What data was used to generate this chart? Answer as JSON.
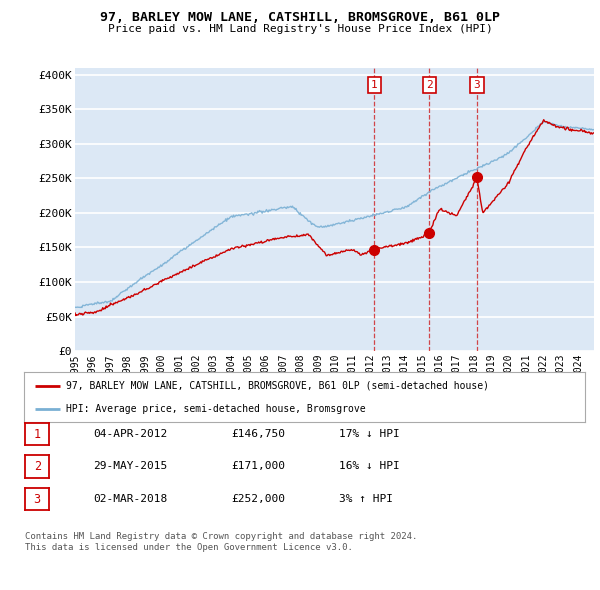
{
  "title": "97, BARLEY MOW LANE, CATSHILL, BROMSGROVE, B61 0LP",
  "subtitle": "Price paid vs. HM Land Registry's House Price Index (HPI)",
  "ylabel_ticks": [
    "£0",
    "£50K",
    "£100K",
    "£150K",
    "£200K",
    "£250K",
    "£300K",
    "£350K",
    "£400K"
  ],
  "ytick_values": [
    0,
    50000,
    100000,
    150000,
    200000,
    250000,
    300000,
    350000,
    400000
  ],
  "ylim": [
    0,
    410000
  ],
  "xlim_start": 1995.0,
  "xlim_end": 2024.92,
  "red_line_color": "#cc0000",
  "blue_line_color": "#7ab0d4",
  "background_color": "#dce8f5",
  "grid_color": "#ffffff",
  "vline_years": [
    2012.25,
    2015.42,
    2018.17
  ],
  "sale_dots": [
    {
      "year": 2012.25,
      "price": 146750,
      "label": "1"
    },
    {
      "year": 2015.42,
      "price": 171000,
      "label": "2"
    },
    {
      "year": 2018.17,
      "price": 252000,
      "label": "3"
    }
  ],
  "legend_entries": [
    "97, BARLEY MOW LANE, CATSHILL, BROMSGROVE, B61 0LP (semi-detached house)",
    "HPI: Average price, semi-detached house, Bromsgrove"
  ],
  "table_rows": [
    {
      "num": "1",
      "date": "04-APR-2012",
      "price": "£146,750",
      "hpi": "17% ↓ HPI"
    },
    {
      "num": "2",
      "date": "29-MAY-2015",
      "price": "£171,000",
      "hpi": "16% ↓ HPI"
    },
    {
      "num": "3",
      "date": "02-MAR-2018",
      "price": "£252,000",
      "hpi": "3% ↑ HPI"
    }
  ],
  "footnote": "Contains HM Land Registry data © Crown copyright and database right 2024.\nThis data is licensed under the Open Government Licence v3.0."
}
